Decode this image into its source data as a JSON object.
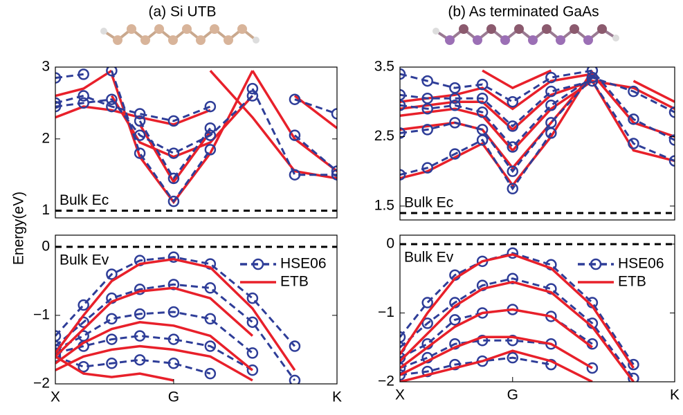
{
  "chart_data": [
    {
      "type": "line",
      "title": "(a) Si UTB",
      "ylabel": "Energy(eV)",
      "xlim": [
        0,
        1
      ],
      "x": [
        0,
        0.1,
        0.2,
        0.3,
        0.42,
        0.55,
        0.7,
        0.85,
        1.0
      ],
      "ylim": [
        0.9,
        3
      ],
      "yticks": [
        1,
        2,
        3
      ],
      "reference": {
        "value": 1.0,
        "label": "Bulk Ec"
      },
      "series": [
        {
          "color": "#e8202a",
          "line_style": "solid",
          "values": [
            [
              null,
              null,
              2.9,
              1.75,
              1.12,
              1.8,
              2.95,
              null,
              null
            ],
            [
              null,
              null,
              null,
              2.2,
              1.4,
              2.1,
              null,
              null,
              null
            ],
            [
              null,
              null,
              2.6,
              1.95,
              1.75,
              1.95,
              2.6,
              null,
              null
            ],
            [
              2.3,
              2.45,
              2.4,
              2.3,
              2.2,
              2.4,
              null,
              null,
              null
            ],
            [
              2.6,
              2.7,
              2.95,
              null,
              null,
              null,
              null,
              null,
              null
            ],
            [
              null,
              null,
              null,
              null,
              null,
              2.95,
              2.3,
              1.55,
              1.45
            ],
            [
              null,
              null,
              null,
              null,
              null,
              null,
              2.95,
              2.0,
              1.55
            ],
            [
              null,
              null,
              null,
              null,
              null,
              null,
              null,
              2.6,
              2.15
            ]
          ]
        },
        {
          "color": "#2e3d98",
          "line_style": "dashed",
          "marker": "circle",
          "values": [
            [
              null,
              null,
              2.95,
              1.8,
              1.13,
              1.85,
              null,
              null,
              null
            ],
            [
              null,
              null,
              null,
              2.25,
              1.45,
              2.15,
              null,
              null,
              null
            ],
            [
              2.45,
              2.5,
              2.55,
              2.05,
              1.8,
              2.05,
              2.6,
              null,
              null
            ],
            [
              2.5,
              2.6,
              2.45,
              2.35,
              2.25,
              2.45,
              null,
              null,
              null
            ],
            [
              2.85,
              2.9,
              null,
              null,
              null,
              null,
              null,
              null,
              null
            ],
            [
              null,
              null,
              null,
              null,
              null,
              null,
              2.7,
              1.5,
              1.5
            ],
            [
              null,
              null,
              null,
              null,
              null,
              null,
              null,
              2.05,
              1.55
            ],
            [
              null,
              null,
              null,
              null,
              null,
              null,
              null,
              2.55,
              2.35
            ]
          ]
        }
      ]
    },
    {
      "type": "line",
      "xlim": [
        0,
        1
      ],
      "x": [
        0,
        0.1,
        0.2,
        0.3,
        0.42,
        0.55,
        0.7,
        0.85,
        1.0
      ],
      "xticks": [
        {
          "value": 0,
          "label": "X"
        },
        {
          "value": 0.42,
          "label": "G"
        },
        {
          "value": 1,
          "label": "K"
        }
      ],
      "ylim": [
        -2,
        0.17
      ],
      "yticks": [
        {
          "value": -2,
          "label": "−2"
        },
        {
          "value": -1,
          "label": "−1"
        },
        0
      ],
      "reference": {
        "value": 0,
        "label": "Bulk Ev"
      },
      "legend": "upper right",
      "series": [
        {
          "name": "HSE06",
          "color": "#2e3d98",
          "line_style": "dashed",
          "marker": "circle",
          "values": [
            [
              -1.3,
              -0.85,
              -0.4,
              -0.2,
              -0.15,
              -0.25,
              -0.75,
              -1.45,
              null
            ],
            [
              -1.45,
              -1.1,
              -0.75,
              -0.62,
              -0.55,
              -0.6,
              -1.1,
              -1.95,
              null
            ],
            [
              -1.5,
              -1.3,
              -1.05,
              -0.98,
              -0.95,
              -1.05,
              -1.55,
              null,
              null
            ],
            [
              -1.55,
              -1.45,
              -1.35,
              -1.3,
              -1.35,
              -1.45,
              -1.8,
              null,
              null
            ],
            [
              -1.6,
              -1.75,
              -1.7,
              -1.65,
              -1.7,
              -1.85,
              null,
              null,
              null
            ]
          ]
        },
        {
          "name": "ETB",
          "color": "#e8202a",
          "line_style": "solid",
          "values": [
            [
              -1.55,
              -1.0,
              -0.5,
              -0.25,
              -0.18,
              -0.3,
              -0.9,
              -1.8,
              null
            ],
            [
              -1.6,
              -1.2,
              -0.8,
              -0.65,
              -0.6,
              -0.75,
              -1.3,
              null,
              null
            ],
            [
              -1.7,
              -1.4,
              -1.2,
              -1.1,
              -1.15,
              -1.3,
              -1.8,
              null,
              null
            ],
            [
              -1.8,
              -1.6,
              -1.5,
              -1.45,
              -1.5,
              -1.6,
              -1.95,
              null,
              null
            ],
            [
              -1.6,
              -1.85,
              -1.9,
              -1.85,
              -1.95,
              null,
              null,
              null,
              null
            ]
          ]
        }
      ]
    },
    {
      "type": "line",
      "title": "(b) As terminated GaAs",
      "xlim": [
        0,
        1
      ],
      "x": [
        0,
        0.1,
        0.2,
        0.3,
        0.41,
        0.55,
        0.7,
        0.85,
        1.0
      ],
      "ylim": [
        1.3,
        3.5
      ],
      "yticks": [
        1.5,
        2.5,
        3.5
      ],
      "reference": {
        "value": 1.4,
        "label": "Bulk Ec"
      },
      "series": [
        {
          "color": "#e8202a",
          "line_style": "solid",
          "values": [
            [
              1.9,
              2.0,
              2.2,
              2.4,
              1.8,
              2.5,
              3.45,
              null,
              null
            ],
            [
              2.6,
              2.65,
              2.7,
              2.6,
              2.05,
              2.7,
              3.4,
              null,
              null
            ],
            [
              2.8,
              2.85,
              2.9,
              2.8,
              2.3,
              2.9,
              3.3,
              3.2,
              2.9
            ],
            [
              2.9,
              2.95,
              3.0,
              3.0,
              2.6,
              3.1,
              3.3,
              2.3,
              2.15
            ],
            [
              3.0,
              3.05,
              3.1,
              3.2,
              2.9,
              3.3,
              3.4,
              2.7,
              2.5
            ],
            [
              null,
              null,
              null,
              3.45,
              3.2,
              3.45,
              null,
              3.3,
              3.0
            ]
          ]
        },
        {
          "color": "#2e3d98",
          "line_style": "dashed",
          "marker": "circle",
          "values": [
            [
              1.95,
              2.05,
              2.25,
              2.45,
              1.75,
              2.55,
              null,
              null,
              null
            ],
            [
              2.55,
              2.6,
              2.7,
              2.6,
              2.0,
              2.7,
              3.35,
              null,
              null
            ],
            [
              2.95,
              2.9,
              2.95,
              2.85,
              2.35,
              2.95,
              3.35,
              3.15,
              2.85
            ],
            [
              3.1,
              3.05,
              3.05,
              3.05,
              2.65,
              3.15,
              3.3,
              2.4,
              2.15
            ],
            [
              3.4,
              3.3,
              3.2,
              3.25,
              3.0,
              3.35,
              3.45,
              2.75,
              2.45
            ]
          ]
        }
      ]
    },
    {
      "type": "line",
      "xlim": [
        0,
        1
      ],
      "x": [
        0,
        0.1,
        0.2,
        0.3,
        0.41,
        0.55,
        0.7,
        0.85,
        1.0
      ],
      "xticks": [
        {
          "value": 0,
          "label": "X"
        },
        {
          "value": 0.41,
          "label": "G"
        },
        {
          "value": 1,
          "label": "K"
        }
      ],
      "ylim": [
        -2,
        0.13
      ],
      "yticks": [
        {
          "value": -2,
          "label": "−2"
        },
        {
          "value": -1,
          "label": "−1"
        },
        0
      ],
      "reference": {
        "value": 0,
        "label": "Bulk Ev"
      },
      "legend": "upper right",
      "series": [
        {
          "name": "HSE06",
          "color": "#2e3d98",
          "line_style": "dashed",
          "marker": "circle",
          "values": [
            [
              -1.35,
              -0.85,
              -0.45,
              -0.25,
              -0.13,
              -0.3,
              -0.85,
              -1.75,
              null
            ],
            [
              -1.5,
              -1.15,
              -0.85,
              -0.6,
              -0.5,
              -0.65,
              -1.15,
              -1.95,
              null
            ],
            [
              -1.65,
              -1.45,
              -1.1,
              -1.0,
              -0.95,
              -1.05,
              -1.45,
              null,
              null
            ],
            [
              -1.8,
              -1.65,
              -1.45,
              -1.4,
              -1.4,
              -1.45,
              -1.8,
              null,
              null
            ],
            [
              -1.9,
              -1.85,
              -1.75,
              -1.7,
              -1.65,
              -1.75,
              null,
              null,
              null
            ]
          ]
        },
        {
          "name": "ETB",
          "color": "#e8202a",
          "line_style": "solid",
          "values": [
            [
              -1.6,
              -1.0,
              -0.5,
              -0.25,
              -0.15,
              -0.35,
              -0.9,
              -1.8,
              null
            ],
            [
              -1.7,
              -1.3,
              -0.9,
              -0.65,
              -0.55,
              -0.7,
              -1.2,
              -2.0,
              null
            ],
            [
              -1.8,
              -1.5,
              -1.2,
              -1.0,
              -0.95,
              -1.05,
              -1.5,
              null,
              null
            ],
            [
              -1.9,
              -1.7,
              -1.5,
              -1.35,
              -1.35,
              -1.45,
              -1.8,
              null,
              null
            ],
            [
              -2.0,
              -1.9,
              -1.8,
              -1.7,
              -1.55,
              -1.7,
              -2.0,
              null,
              null
            ]
          ]
        }
      ]
    }
  ]
}
